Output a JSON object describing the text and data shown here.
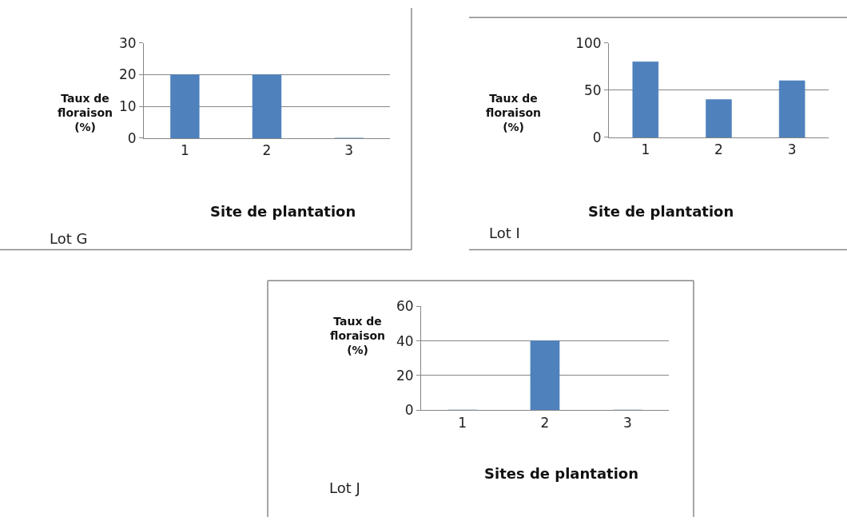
{
  "chart_data": [
    {
      "type": "bar",
      "categories": [
        "1",
        "2",
        "3"
      ],
      "values": [
        20,
        20,
        0
      ],
      "color": "#4f81bd",
      "ylim": [
        0,
        30
      ],
      "yticks": [
        0,
        10,
        20,
        30
      ],
      "grid": "y",
      "ylabel": "Taux de\nfloraison\n(%)",
      "xlabel": "Site de plantation",
      "annotations": [
        "Lot G"
      ]
    },
    {
      "type": "bar",
      "categories": [
        "1",
        "2",
        "3"
      ],
      "values": [
        80,
        40,
        60
      ],
      "color": "#4f81bd",
      "ylim": [
        0,
        100
      ],
      "yticks": [
        0,
        50,
        100
      ],
      "grid": "y",
      "ylabel": "Taux de\nfloraison\n(%)",
      "xlabel": "Site de plantation",
      "annotations": [
        "Lot I"
      ]
    },
    {
      "type": "bar",
      "categories": [
        "1",
        "2",
        "3"
      ],
      "values": [
        0,
        40,
        0
      ],
      "color": "#4f81bd",
      "ylim": [
        0,
        60
      ],
      "yticks": [
        0,
        20,
        40,
        60
      ],
      "grid": "y",
      "ylabel": "Taux de\nfloraison\n(%)",
      "xlabel": "Sites de plantation",
      "annotations": [
        "Lot J"
      ]
    }
  ]
}
